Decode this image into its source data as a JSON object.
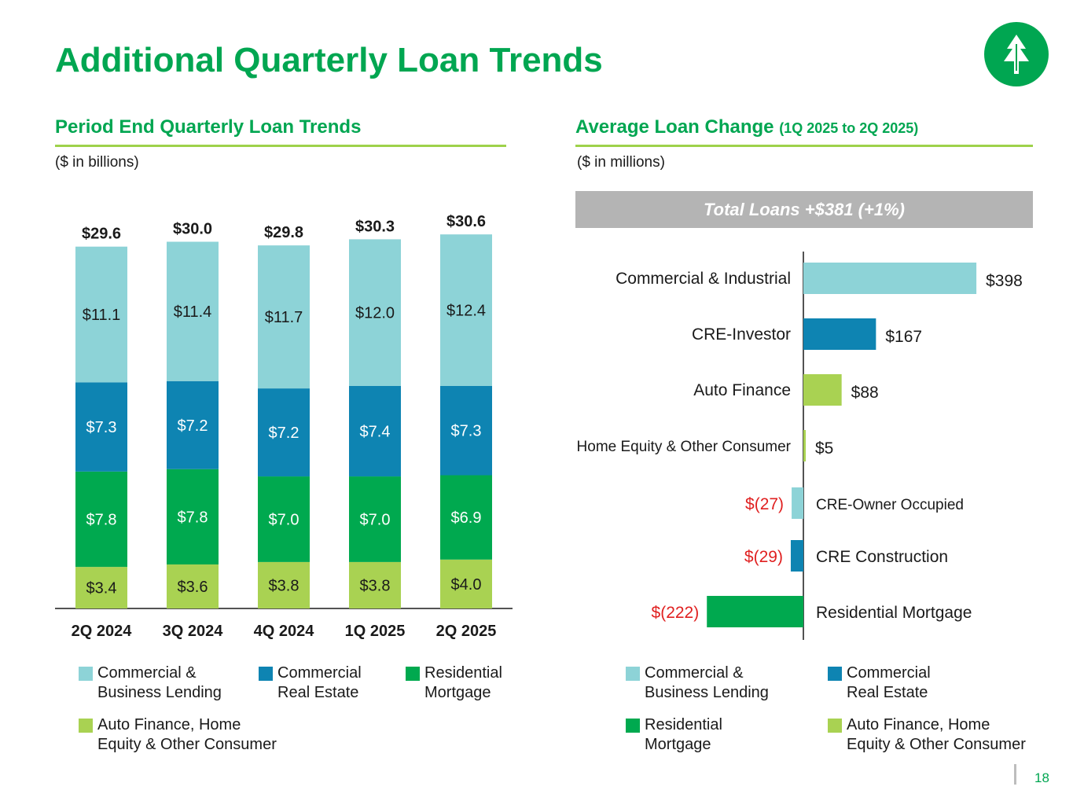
{
  "title": "Additional Quarterly Loan Trends",
  "page_number": "18",
  "colors": {
    "green_title": "#00a651",
    "rule": "#9ed24a",
    "commercial_business": "#8dd3d7",
    "commercial_re": "#0e84b2",
    "residential": "#00a94f",
    "auto_consumer": "#a9d252",
    "negative_label": "#e02020"
  },
  "left_panel": {
    "title": "Period End Quarterly Loan Trends",
    "units": "($ in billions)",
    "legend": [
      {
        "label": "Commercial &\nBusiness Lending",
        "color": "#8dd3d7"
      },
      {
        "label": "Commercial\nReal Estate",
        "color": "#0e84b2"
      },
      {
        "label": "Residential\nMortgage",
        "color": "#00a94f"
      },
      {
        "label": "Auto Finance, Home\nEquity & Other Consumer",
        "color": "#a9d252"
      }
    ]
  },
  "right_panel": {
    "title": "Average Loan Change",
    "title_sub": "(1Q 2025 to 2Q 2025)",
    "units": "($ in millions)",
    "banner": "Total Loans +$381 (+1%)",
    "legend": [
      {
        "label": "Commercial &\nBusiness Lending",
        "color": "#8dd3d7"
      },
      {
        "label": "Commercial\nReal Estate",
        "color": "#0e84b2"
      },
      {
        "label": "Residential\nMortgage",
        "color": "#00a94f"
      },
      {
        "label": "Auto Finance, Home\nEquity & Other Consumer",
        "color": "#a9d252"
      }
    ]
  },
  "chart_data": [
    {
      "type": "bar",
      "stacked": true,
      "title": "Period End Quarterly Loan Trends",
      "ylabel": "($ in billions)",
      "categories": [
        "2Q 2024",
        "3Q 2024",
        "4Q 2024",
        "1Q 2025",
        "2Q 2025"
      ],
      "totals": [
        "$29.6",
        "$30.0",
        "$29.8",
        "$30.3",
        "$30.6"
      ],
      "series": [
        {
          "name": "Auto Finance, Home Equity & Other Consumer",
          "values": [
            3.4,
            3.6,
            3.8,
            3.8,
            4.0
          ],
          "labels": [
            "$3.4",
            "$3.6",
            "$3.8",
            "$3.8",
            "$4.0"
          ],
          "color": "#a9d252"
        },
        {
          "name": "Residential Mortgage",
          "values": [
            7.8,
            7.8,
            7.0,
            7.0,
            6.9
          ],
          "labels": [
            "$7.8",
            "$7.8",
            "$7.0",
            "$7.0",
            "$6.9"
          ],
          "color": "#00a94f"
        },
        {
          "name": "Commercial Real Estate",
          "values": [
            7.3,
            7.2,
            7.2,
            7.4,
            7.3
          ],
          "labels": [
            "$7.3",
            "$7.2",
            "$7.2",
            "$7.4",
            "$7.3"
          ],
          "color": "#0e84b2"
        },
        {
          "name": "Commercial & Business Lending",
          "values": [
            11.1,
            11.4,
            11.7,
            12.0,
            12.4
          ],
          "labels": [
            "$11.1",
            "$11.4",
            "$11.7",
            "$12.0",
            "$12.4"
          ],
          "color": "#8dd3d7"
        }
      ]
    },
    {
      "type": "bar",
      "orientation": "horizontal",
      "title": "Average Loan Change (1Q 2025 to 2Q 2025)",
      "xlabel": "($ in millions)",
      "categories": [
        "Commercial & Industrial",
        "CRE-Investor",
        "Auto Finance",
        "Home Equity & Other Consumer",
        "CRE-Owner Occupied",
        "CRE Construction",
        "Residential Mortgage"
      ],
      "values": [
        398,
        167,
        88,
        5,
        -27,
        -29,
        -222
      ],
      "labels": [
        "$398",
        "$167",
        "$88",
        "$5",
        "$(27)",
        "$(29)",
        "$(222)"
      ],
      "colors": [
        "#8dd3d7",
        "#0e84b2",
        "#a9d252",
        "#a9d252",
        "#8dd3d7",
        "#0e84b2",
        "#00a94f"
      ]
    }
  ]
}
